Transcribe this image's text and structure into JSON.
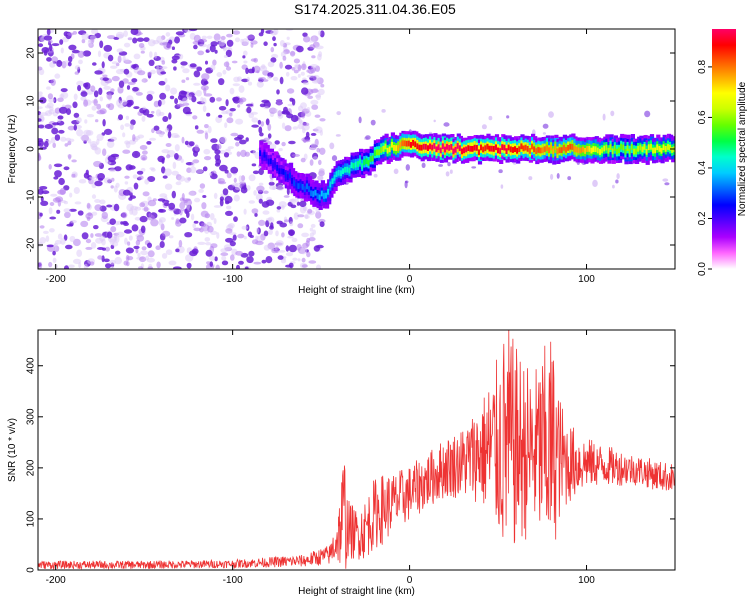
{
  "title": "S174.2025.311.04.36.E05",
  "chart_data": [
    {
      "type": "heatmap",
      "xlabel": "Height of straight line (km)",
      "ylabel": "Frequency (Hz)",
      "xlim": [
        -210,
        150
      ],
      "ylim": [
        -25,
        25
      ],
      "x_ticks": [
        -200,
        -100,
        0,
        100
      ],
      "y_ticks": [
        -20,
        -10,
        0,
        10,
        20
      ],
      "colorbar": {
        "label": "Normalized spectral amplitude",
        "range": [
          0,
          0.95
        ],
        "ticks": [
          0.0,
          0.2,
          0.4,
          0.6,
          0.8
        ],
        "tick_labels": [
          "0.0",
          "0.2",
          "0.4",
          "0.6",
          "0.8"
        ],
        "colors": [
          "#ffffff",
          "#ff66ff",
          "#aa00ff",
          "#5500ff",
          "#0000ff",
          "#0066ff",
          "#00ccff",
          "#00ffcc",
          "#00ff44",
          "#66ff00",
          "#ccff00",
          "#ffff00",
          "#ffaa00",
          "#ff5500",
          "#ff0000",
          "#ff0066"
        ]
      },
      "noise_region": {
        "x_from": -210,
        "x_to": -55,
        "f_from": -25,
        "f_to": 25
      },
      "signal_track": {
        "x": [
          -85,
          -75,
          -65,
          -55,
          -48,
          -42,
          -35,
          -28,
          -22,
          -15,
          -8,
          0,
          10,
          20,
          30,
          40,
          50,
          60,
          70,
          80,
          90,
          100,
          110,
          120,
          130,
          140,
          150
        ],
        "f": [
          -1,
          -4,
          -7,
          -9,
          -10,
          -5,
          -4,
          -3,
          -2,
          0,
          0.5,
          1,
          0.5,
          0,
          0,
          0,
          0,
          0,
          0,
          0,
          0,
          0,
          0,
          0,
          0,
          0,
          0
        ],
        "amplitude": [
          0.2,
          0.22,
          0.25,
          0.3,
          0.35,
          0.4,
          0.42,
          0.45,
          0.5,
          0.6,
          0.7,
          0.85,
          0.9,
          0.95,
          0.9,
          0.85,
          0.9,
          0.85,
          0.8,
          0.75,
          0.8,
          0.7,
          0.6,
          0.55,
          0.6,
          0.65,
          0.6
        ]
      }
    },
    {
      "type": "line",
      "xlabel": "Height of straight line (km)",
      "ylabel": "SNR (10 * v/v)",
      "xlim": [
        -210,
        150
      ],
      "ylim": [
        0,
        470
      ],
      "x_ticks": [
        -200,
        -100,
        0,
        100
      ],
      "y_ticks": [
        0,
        100,
        200,
        300,
        400
      ],
      "color": "#ee3333",
      "envelope": {
        "x": [
          -210,
          -150,
          -100,
          -60,
          -45,
          -40,
          -37,
          -35,
          -30,
          -25,
          -20,
          -15,
          -10,
          0,
          10,
          20,
          30,
          40,
          50,
          55,
          60,
          70,
          80,
          85,
          90,
          100,
          110,
          120,
          130,
          140,
          150
        ],
        "mean": [
          10,
          10,
          12,
          18,
          30,
          70,
          110,
          80,
          70,
          80,
          110,
          120,
          130,
          150,
          175,
          200,
          210,
          230,
          240,
          250,
          240,
          230,
          240,
          220,
          210,
          210,
          205,
          200,
          195,
          185,
          180
        ],
        "spread": [
          8,
          8,
          8,
          12,
          20,
          60,
          140,
          60,
          50,
          60,
          70,
          70,
          60,
          55,
          55,
          60,
          70,
          100,
          180,
          240,
          200,
          160,
          230,
          120,
          80,
          50,
          40,
          35,
          30,
          30,
          28
        ]
      },
      "samples": 1400
    }
  ]
}
